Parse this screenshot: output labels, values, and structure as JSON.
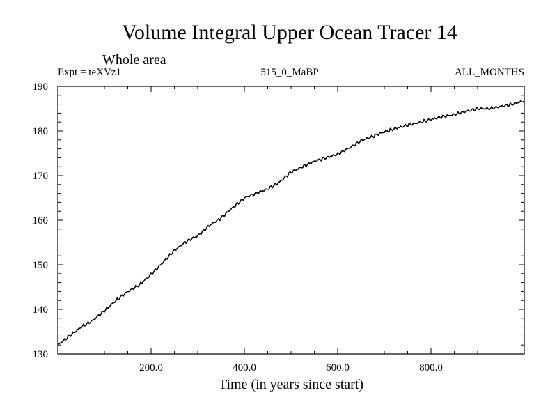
{
  "chart_data": {
    "type": "line",
    "title": "Volume Integral Upper Ocean Tracer 14",
    "subtitle": "Whole area",
    "left_label": "Expt = teXVz1",
    "center_label": "515_0_MaBP",
    "right_label": "ALL_MONTHS",
    "xlabel": "Time (in years since start)",
    "ylabel": "",
    "xlim": [
      0,
      1000
    ],
    "ylim": [
      130,
      190
    ],
    "x_ticks": [
      200,
      400,
      600,
      800
    ],
    "x_tick_labels": [
      "200.0",
      "400.0",
      "600.0",
      "800.0"
    ],
    "y_ticks": [
      130,
      140,
      150,
      160,
      170,
      180,
      190
    ],
    "y_tick_labels": [
      "130",
      "140",
      "150",
      "160",
      "170",
      "180",
      "190"
    ],
    "series": [
      {
        "name": "Volume Integral Upper Ocean Tracer 14",
        "color": "#000000",
        "x": [
          0,
          25,
          50,
          75,
          100,
          125,
          150,
          175,
          200,
          225,
          250,
          275,
          300,
          325,
          350,
          375,
          400,
          425,
          450,
          475,
          500,
          525,
          550,
          575,
          600,
          625,
          650,
          675,
          700,
          725,
          750,
          775,
          800,
          825,
          850,
          875,
          900,
          925,
          950,
          975,
          1000
        ],
        "values": [
          132.0,
          134.0,
          136.0,
          137.5,
          139.7,
          142.0,
          144.0,
          145.5,
          147.8,
          150.5,
          153.2,
          155.2,
          156.5,
          158.8,
          160.5,
          162.8,
          165.0,
          166.0,
          167.0,
          168.5,
          170.8,
          172.0,
          173.2,
          174.0,
          174.8,
          176.2,
          177.8,
          178.8,
          179.8,
          180.6,
          181.3,
          181.9,
          182.6,
          183.2,
          183.7,
          184.4,
          185.0,
          185.0,
          185.5,
          186.0,
          186.8
        ]
      }
    ]
  }
}
